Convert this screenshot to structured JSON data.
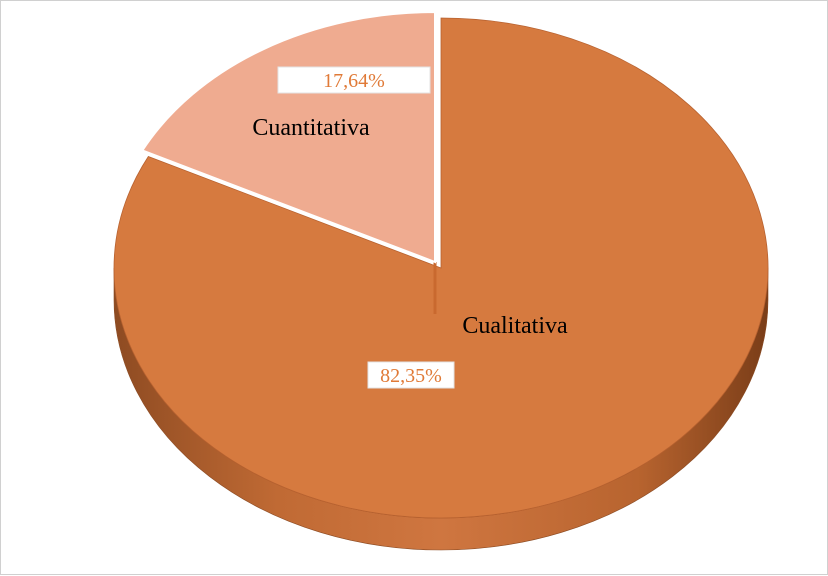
{
  "chart_data": {
    "type": "pie",
    "style": "3d",
    "slices": [
      {
        "label": "Cualitativa",
        "value": 82.35,
        "value_label": "82,35%",
        "color": "#D67A3F",
        "exploded": false
      },
      {
        "label": "Cuantitativa",
        "value": 17.64,
        "value_label": "17,64%",
        "color": "#EFAB90",
        "exploded": true
      }
    ],
    "legend": "none",
    "data_label_color": "#E07A37"
  }
}
